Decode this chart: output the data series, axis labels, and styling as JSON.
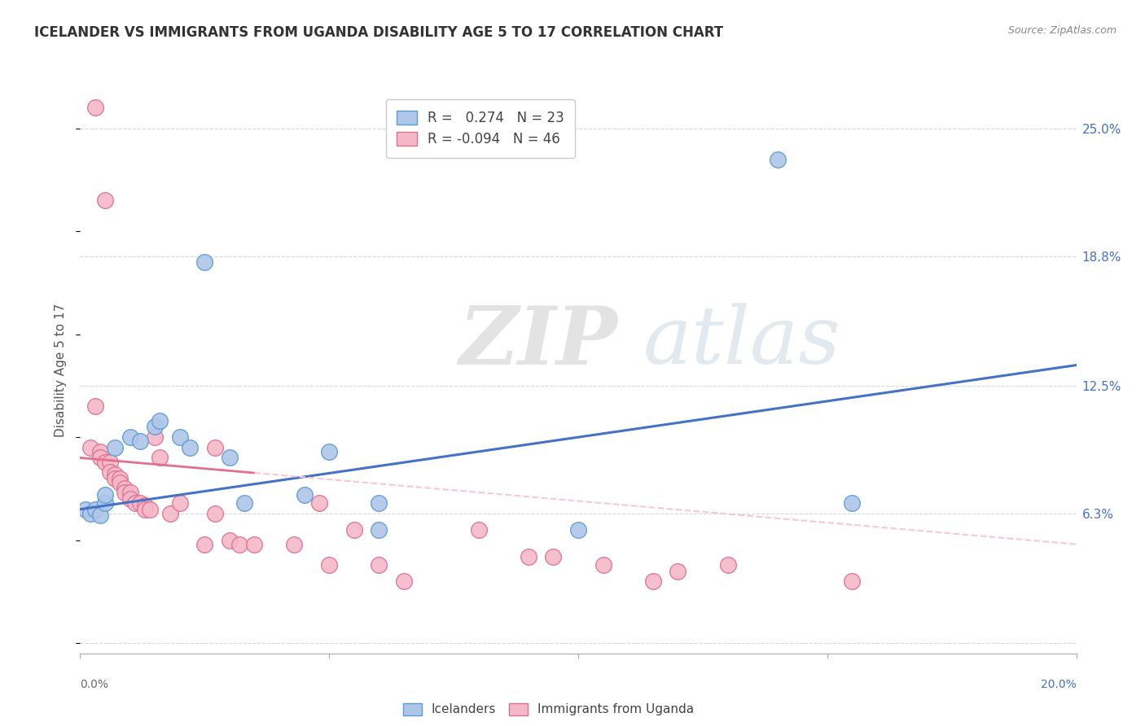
{
  "title": "ICELANDER VS IMMIGRANTS FROM UGANDA DISABILITY AGE 5 TO 17 CORRELATION CHART",
  "source": "Source: ZipAtlas.com",
  "ylabel": "Disability Age 5 to 17",
  "yticks": [
    0.0,
    0.063,
    0.125,
    0.188,
    0.25
  ],
  "ytick_labels": [
    "",
    "6.3%",
    "12.5%",
    "18.8%",
    "25.0%"
  ],
  "xlim": [
    0.0,
    0.2
  ],
  "ylim": [
    -0.005,
    0.27
  ],
  "r_blue": 0.274,
  "n_blue": 23,
  "r_pink": -0.094,
  "n_pink": 46,
  "blue_scatter": [
    [
      0.001,
      0.065
    ],
    [
      0.002,
      0.063
    ],
    [
      0.003,
      0.065
    ],
    [
      0.004,
      0.062
    ],
    [
      0.005,
      0.068
    ],
    [
      0.005,
      0.072
    ],
    [
      0.007,
      0.095
    ],
    [
      0.01,
      0.1
    ],
    [
      0.012,
      0.098
    ],
    [
      0.015,
      0.105
    ],
    [
      0.016,
      0.108
    ],
    [
      0.02,
      0.1
    ],
    [
      0.022,
      0.095
    ],
    [
      0.025,
      0.185
    ],
    [
      0.03,
      0.09
    ],
    [
      0.033,
      0.068
    ],
    [
      0.045,
      0.072
    ],
    [
      0.05,
      0.093
    ],
    [
      0.06,
      0.068
    ],
    [
      0.06,
      0.055
    ],
    [
      0.1,
      0.055
    ],
    [
      0.14,
      0.235
    ],
    [
      0.155,
      0.068
    ]
  ],
  "pink_scatter": [
    [
      0.003,
      0.26
    ],
    [
      0.005,
      0.215
    ],
    [
      0.003,
      0.115
    ],
    [
      0.002,
      0.095
    ],
    [
      0.004,
      0.093
    ],
    [
      0.004,
      0.09
    ],
    [
      0.005,
      0.088
    ],
    [
      0.006,
      0.088
    ],
    [
      0.006,
      0.083
    ],
    [
      0.007,
      0.082
    ],
    [
      0.007,
      0.08
    ],
    [
      0.008,
      0.08
    ],
    [
      0.008,
      0.078
    ],
    [
      0.009,
      0.075
    ],
    [
      0.009,
      0.073
    ],
    [
      0.01,
      0.073
    ],
    [
      0.01,
      0.07
    ],
    [
      0.011,
      0.068
    ],
    [
      0.012,
      0.068
    ],
    [
      0.013,
      0.067
    ],
    [
      0.013,
      0.065
    ],
    [
      0.014,
      0.065
    ],
    [
      0.015,
      0.1
    ],
    [
      0.016,
      0.09
    ],
    [
      0.018,
      0.063
    ],
    [
      0.02,
      0.068
    ],
    [
      0.025,
      0.048
    ],
    [
      0.027,
      0.063
    ],
    [
      0.027,
      0.095
    ],
    [
      0.03,
      0.05
    ],
    [
      0.032,
      0.048
    ],
    [
      0.035,
      0.048
    ],
    [
      0.043,
      0.048
    ],
    [
      0.048,
      0.068
    ],
    [
      0.05,
      0.038
    ],
    [
      0.055,
      0.055
    ],
    [
      0.06,
      0.038
    ],
    [
      0.065,
      0.03
    ],
    [
      0.08,
      0.055
    ],
    [
      0.09,
      0.042
    ],
    [
      0.095,
      0.042
    ],
    [
      0.105,
      0.038
    ],
    [
      0.115,
      0.03
    ],
    [
      0.12,
      0.035
    ],
    [
      0.13,
      0.038
    ],
    [
      0.155,
      0.03
    ]
  ],
  "blue_color": "#aec6e8",
  "blue_edge": "#5b9bd5",
  "pink_color": "#f4b8c8",
  "pink_edge": "#e07090",
  "blue_line_color": "#4472c4",
  "pink_line_color": "#e07090",
  "pink_dash_color": "#f4c8d4",
  "watermark_zip": "ZIP",
  "watermark_atlas": "atlas",
  "background_color": "#ffffff",
  "grid_color": "#d8d8d8"
}
